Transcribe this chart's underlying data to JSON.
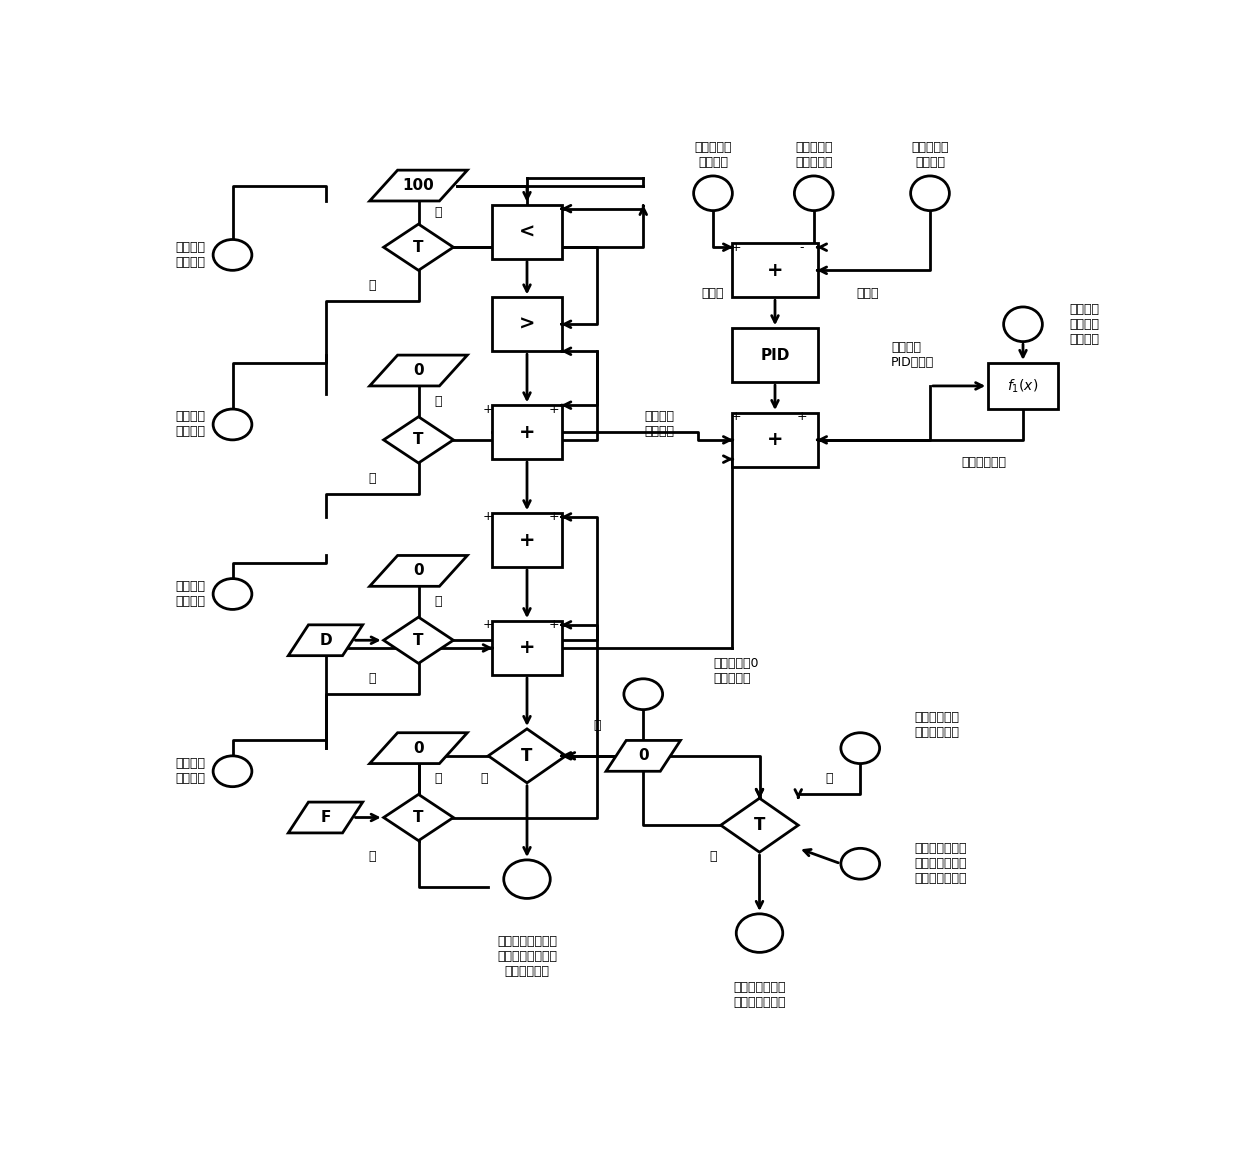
{
  "fig_width": 12.4,
  "fig_height": 11.61,
  "bg_color": "#ffffff",
  "lw": 2.0,
  "lc": "#000000",
  "labels": {
    "lock_open": "闭锁开启\n条件满足",
    "lock_close": "闭锁关闭\n条件满足",
    "chain_open": "连锁开启\n条件满足",
    "chain_close": "连锁关闭\n条件满足",
    "low_bypass_steam": "低旁蒸汽流\n量测量值",
    "high_bypass_dewater": "高旁减温水\n流量测量值",
    "high_bypass_steam": "高旁蒸汽流\n量测量值",
    "setpoint": "设定值",
    "controlled_var": "被调量",
    "high_flow_pid": "高旁流量\nPID调节器",
    "high_flow_cmd": "高旁流量\n控制指令",
    "follow_cmd": "随动控制指令",
    "low_bypass_valve": "低压旁路\n调节阀门\n控制指令",
    "protect_close": "保护关闭至0\n的条件满足",
    "heat_bypass_mode": "供热机组处于\n旁路供热方式",
    "hp_valve_startstop": "高压旁路调节阀\n门供热机组启、\n停方式控制指令",
    "hp_auto_cmd": "高压旁路调节阀\n门自动控制指令",
    "hp_bypass_cmd": "高压旁路调节阀门\n供热机组旁路供热\n方式控制指令"
  }
}
